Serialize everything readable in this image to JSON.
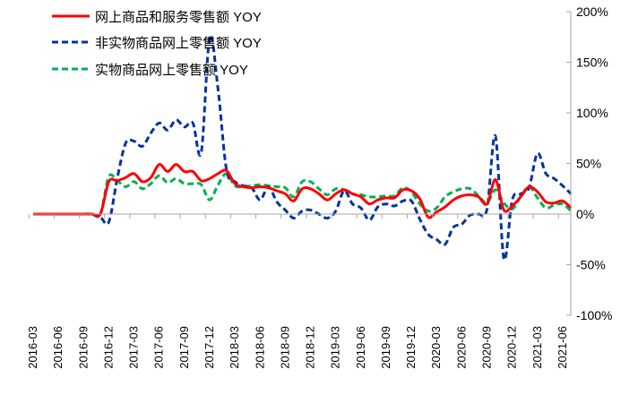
{
  "chart_data": {
    "type": "line",
    "title": "",
    "xlabel": "",
    "ylabel": "",
    "ylim": [
      -100,
      200
    ],
    "yticks": [
      "200%",
      "150%",
      "100%",
      "50%",
      "0%",
      "-50%",
      "-100%"
    ],
    "ytick_values": [
      200,
      150,
      100,
      50,
      0,
      -50,
      -100
    ],
    "y_axis_side": "right",
    "legend_position": "top-left",
    "x_start": "2016-03",
    "x_frequency": "monthly",
    "xtick_labels": [
      "2016-03",
      "2016-06",
      "2016-09",
      "2016-12",
      "2017-03",
      "2017-06",
      "2017-09",
      "2017-12",
      "2018-03",
      "2018-06",
      "2018-09",
      "2018-12",
      "2019-03",
      "2019-06",
      "2019-09",
      "2019-12",
      "2020-03",
      "2020-06",
      "2020-09",
      "2020-12",
      "2021-03",
      "2021-06"
    ],
    "series": [
      {
        "name": "网上商品和服务零售额 YOY",
        "color": "#ff0000",
        "style": "solid",
        "values": [
          0,
          0,
          0,
          0,
          0,
          0,
          0,
          0,
          0,
          32,
          33,
          36,
          40,
          32,
          36,
          49,
          42,
          49,
          42,
          42,
          33,
          35,
          40,
          43,
          30,
          27,
          26,
          27,
          26,
          23,
          20,
          13,
          25,
          25,
          20,
          14,
          20,
          24,
          20,
          17,
          10,
          14,
          16,
          16,
          24,
          23,
          15,
          -3,
          2,
          7,
          14,
          18,
          19,
          17,
          10,
          34,
          4,
          8,
          17,
          27,
          22,
          12,
          11,
          13,
          6
        ]
      },
      {
        "name": "非实物商品网上零售额 YOY",
        "color": "#0033a0",
        "style": "dashed",
        "values": [
          0,
          0,
          0,
          0,
          0,
          0,
          0,
          0,
          -3,
          -8,
          35,
          70,
          72,
          67,
          80,
          90,
          83,
          93,
          86,
          90,
          61,
          175,
          123,
          44,
          32,
          28,
          26,
          14,
          27,
          12,
          4,
          -4,
          3,
          4,
          0,
          -4,
          3,
          23,
          10,
          6,
          -6,
          7,
          10,
          8,
          13,
          13,
          -5,
          -20,
          -25,
          -30,
          -13,
          -10,
          -1,
          0,
          5,
          77,
          -44,
          14,
          20,
          26,
          60,
          40,
          35,
          28,
          20
        ]
      },
      {
        "name": "实物商品网上零售额 YOY",
        "color": "#00b050",
        "style": "dashed",
        "values": [
          0,
          0,
          0,
          0,
          0,
          0,
          0,
          0,
          0,
          37,
          33,
          27,
          32,
          25,
          30,
          38,
          31,
          35,
          30,
          30,
          29,
          14,
          29,
          40,
          28,
          27,
          28,
          29,
          28,
          27,
          26,
          17,
          32,
          32,
          25,
          19,
          25,
          24,
          20,
          19,
          17,
          17,
          18,
          18,
          26,
          22,
          10,
          3,
          6,
          17,
          22,
          25,
          25,
          18,
          11,
          24,
          11,
          5,
          17,
          27,
          16,
          6,
          9,
          10,
          3
        ]
      }
    ]
  }
}
